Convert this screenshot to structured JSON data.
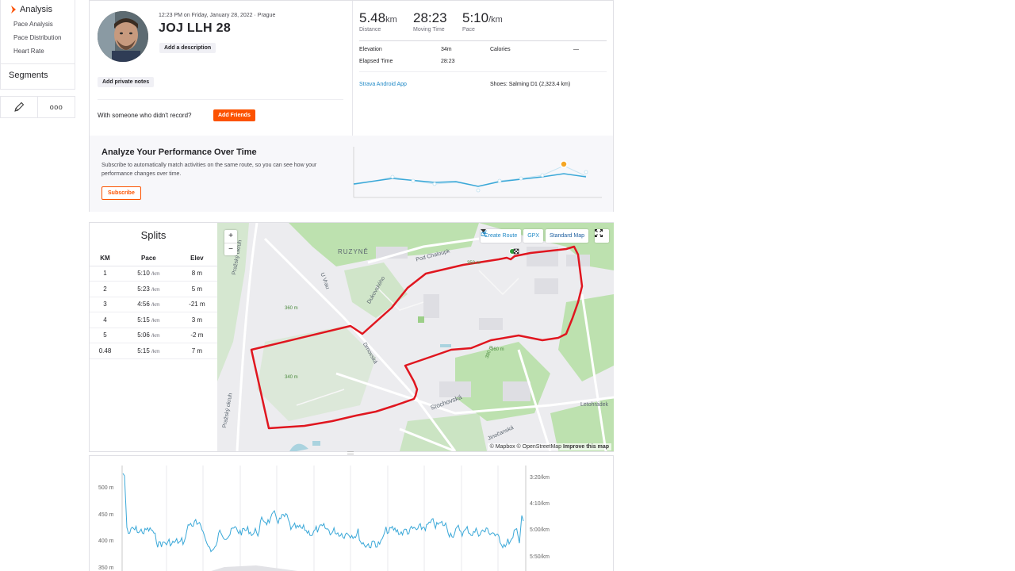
{
  "sidebar": {
    "analysis_label": "Analysis",
    "sub_items": [
      "Pace Analysis",
      "Pace Distribution",
      "Heart Rate"
    ],
    "segments_label": "Segments",
    "edit_icon": "pencil-icon",
    "more_icon": "ellipsis-icon",
    "more_glyph": "ooo"
  },
  "activity": {
    "datetime": "12:23 PM on Friday, January 28, 2022 · Prague",
    "title": "JOJ LLH 28",
    "add_description": "Add a description",
    "add_private_notes": "Add private notes",
    "with_someone": "With someone who didn't record?",
    "add_friends": "Add Friends"
  },
  "stats": {
    "distance": {
      "value": "5.48",
      "unit": "km",
      "label": "Distance"
    },
    "moving_time": {
      "value": "28:23",
      "label": "Moving Time"
    },
    "pace": {
      "value": "5:10",
      "unit": "/km",
      "label": "Pace"
    },
    "elevation_label": "Elevation",
    "elevation_value": "34m",
    "calories_label": "Calories",
    "calories_value": "—",
    "elapsed_label": "Elapsed Time",
    "elapsed_value": "28:23",
    "app": "Strava Android App",
    "shoes": "Shoes: Salming D1 (2,323.4 km)"
  },
  "analyze": {
    "title": "Analyze Your Performance Over Time",
    "description": "Subscribe to automatically match activities on the same route, so you can see how your performance changes over time.",
    "subscribe": "Subscribe"
  },
  "splits": {
    "title": "Splits",
    "headers": [
      "KM",
      "Pace",
      "Elev"
    ],
    "rows": [
      {
        "km": "1",
        "pace": "5:10",
        "unit": "/km",
        "elev": "8 m"
      },
      {
        "km": "2",
        "pace": "5:23",
        "unit": "/km",
        "elev": "5 m"
      },
      {
        "km": "3",
        "pace": "4:56",
        "unit": "/km",
        "elev": "-21 m"
      },
      {
        "km": "4",
        "pace": "5:15",
        "unit": "/km",
        "elev": "3 m"
      },
      {
        "km": "5",
        "pace": "5:06",
        "unit": "/km",
        "elev": "-2 m"
      },
      {
        "km": "0.48",
        "pace": "5:15",
        "unit": "/km",
        "elev": "7 m"
      }
    ]
  },
  "map": {
    "zoom_in": "+",
    "zoom_out": "−",
    "create_route": "Create Route",
    "gpx": "GPX",
    "map_type": "Standard Map",
    "attribution_1": "© Mapbox © OpenStreetMap",
    "attribution_2": "Improve this map",
    "labels": {
      "ruzyne": "RUZYNĚ",
      "prazsky1": "Pražský okruh",
      "prazsky2": "Pražský okruh",
      "stochovska": "Stochovská",
      "drnovska": "Drnovská",
      "letohradek": "Letohrádek",
      "jinocanska": "Jinočanská",
      "pod_chanoku": "Pod Chaloupk",
      "dukovskeho": "Dukovského",
      "v_rau": "U Vrau",
      "e360": "360 m",
      "e340": "340 m",
      "e380": "380 m",
      "e360b": "360 m",
      "e350": "350 m"
    },
    "route_color": "#e0161f",
    "park_color": "#b8dfa8"
  },
  "chart": {
    "left_ticks": [
      "500 m",
      "450 m",
      "400 m",
      "350 m"
    ],
    "right_ticks": [
      "3:20/km",
      "4:10/km",
      "5:00/km",
      "5:50/km"
    ],
    "pace_color": "#3aa8d8"
  },
  "colors": {
    "accent": "#fc5200",
    "link": "#1e88c6"
  }
}
